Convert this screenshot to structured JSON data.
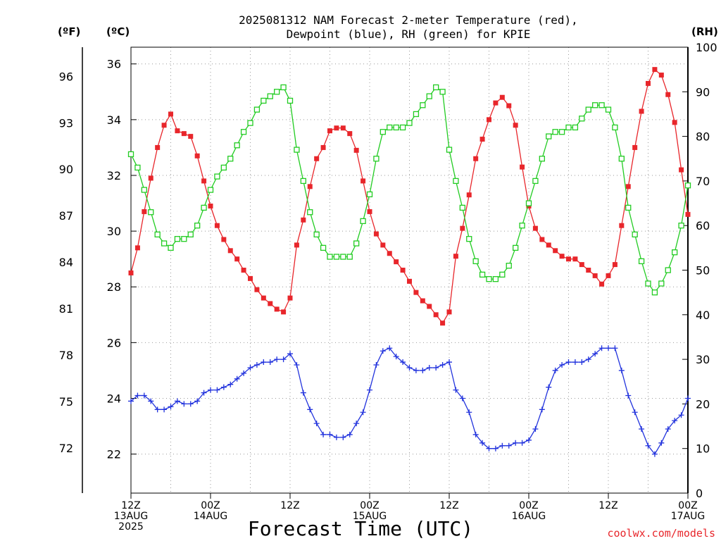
{
  "chart_data": {
    "type": "line",
    "title_line1": "2025081312 NAM Forecast 2-meter Temperature (red),",
    "title_line2": "Dewpoint (blue), RH (green) for KPIE",
    "xlabel": "Forecast Time (UTC)",
    "watermark": "coolwx.com/models",
    "left_outer_label": "(ºF)",
    "left_inner_label": "(ºC)",
    "right_label": "(RH)",
    "ylim_c": [
      20.6,
      36.6
    ],
    "ylim_rh": [
      0,
      100
    ],
    "celsius_ticks": [
      22,
      24,
      26,
      28,
      30,
      32,
      34,
      36
    ],
    "fahrenheit_ticks": [
      72,
      75,
      78,
      81,
      84,
      87,
      90,
      93,
      96
    ],
    "rh_ticks": [
      0,
      10,
      20,
      30,
      40,
      50,
      60,
      70,
      80,
      90,
      100
    ],
    "x_hours_range": [
      0,
      84
    ],
    "x_ticks": [
      {
        "hour": 0,
        "lines": [
          "12Z",
          "13AUG",
          "2025"
        ]
      },
      {
        "hour": 12,
        "lines": [
          "00Z",
          "14AUG"
        ]
      },
      {
        "hour": 24,
        "lines": [
          "12Z"
        ]
      },
      {
        "hour": 36,
        "lines": [
          "00Z",
          "15AUG"
        ]
      },
      {
        "hour": 48,
        "lines": [
          "12Z"
        ]
      },
      {
        "hour": 60,
        "lines": [
          "00Z",
          "16AUG"
        ]
      },
      {
        "hour": 72,
        "lines": [
          "12Z"
        ]
      },
      {
        "hour": 84,
        "lines": [
          "00Z",
          "17AUG"
        ]
      }
    ],
    "grid": true,
    "colors": {
      "temperature": "#e8262b",
      "dewpoint": "#2233dd",
      "rh": "#22cc22"
    },
    "series": [
      {
        "name": "Temperature",
        "units": "°C",
        "hours": [
          0,
          1,
          2,
          3,
          4,
          5,
          6,
          7,
          8,
          9,
          10,
          11,
          12,
          13,
          14,
          15,
          16,
          17,
          18,
          19,
          20,
          21,
          22,
          23,
          24,
          25,
          26,
          27,
          28,
          29,
          30,
          31,
          32,
          33,
          34,
          35,
          36,
          37,
          38,
          39,
          40,
          41,
          42,
          43,
          44,
          45,
          46,
          47,
          48,
          49,
          50,
          51,
          52,
          53,
          54,
          55,
          56,
          57,
          58,
          59,
          60,
          61,
          62,
          63,
          64,
          65,
          66,
          67,
          68,
          69,
          70,
          71,
          72,
          73,
          74,
          75,
          76,
          77,
          78,
          79,
          80,
          81,
          82,
          83,
          84
        ],
        "values": [
          28.5,
          29.4,
          30.7,
          31.9,
          33.0,
          33.8,
          34.2,
          33.6,
          33.5,
          33.4,
          32.7,
          31.8,
          30.9,
          30.2,
          29.7,
          29.3,
          29.0,
          28.6,
          28.3,
          27.9,
          27.6,
          27.4,
          27.2,
          27.1,
          27.6,
          29.5,
          30.4,
          31.6,
          32.6,
          33.0,
          33.6,
          33.7,
          33.7,
          33.5,
          32.9,
          31.8,
          30.7,
          29.9,
          29.5,
          29.2,
          28.9,
          28.6,
          28.2,
          27.8,
          27.5,
          27.3,
          27.0,
          26.7,
          27.1,
          29.1,
          30.1,
          31.3,
          32.6,
          33.3,
          34.0,
          34.6,
          34.8,
          34.5,
          33.8,
          32.3,
          30.9,
          30.1,
          29.7,
          29.5,
          29.3,
          29.1,
          29.0,
          29.0,
          28.8,
          28.6,
          28.4,
          28.1,
          28.4,
          28.8,
          30.2,
          31.6,
          33.0,
          34.3,
          35.3,
          35.8,
          35.6,
          34.9,
          33.9,
          32.2,
          30.6
        ]
      },
      {
        "name": "Dewpoint",
        "units": "°C",
        "hours": [
          0,
          1,
          2,
          3,
          4,
          5,
          6,
          7,
          8,
          9,
          10,
          11,
          12,
          13,
          14,
          15,
          16,
          17,
          18,
          19,
          20,
          21,
          22,
          23,
          24,
          25,
          26,
          27,
          28,
          29,
          30,
          31,
          32,
          33,
          34,
          35,
          36,
          37,
          38,
          39,
          40,
          41,
          42,
          43,
          44,
          45,
          46,
          47,
          48,
          49,
          50,
          51,
          52,
          53,
          54,
          55,
          56,
          57,
          58,
          59,
          60,
          61,
          62,
          63,
          64,
          65,
          66,
          67,
          68,
          69,
          70,
          71,
          72,
          73,
          74,
          75,
          76,
          77,
          78,
          79,
          80,
          81,
          82,
          83,
          84
        ],
        "values": [
          23.9,
          24.1,
          24.1,
          23.9,
          23.6,
          23.6,
          23.7,
          23.9,
          23.8,
          23.8,
          23.9,
          24.2,
          24.3,
          24.3,
          24.4,
          24.5,
          24.7,
          24.9,
          25.1,
          25.2,
          25.3,
          25.3,
          25.4,
          25.4,
          25.6,
          25.2,
          24.2,
          23.6,
          23.1,
          22.7,
          22.7,
          22.6,
          22.6,
          22.7,
          23.1,
          23.5,
          24.3,
          25.2,
          25.7,
          25.8,
          25.5,
          25.3,
          25.1,
          25.0,
          25.0,
          25.1,
          25.1,
          25.2,
          25.3,
          24.3,
          24.0,
          23.5,
          22.7,
          22.4,
          22.2,
          22.2,
          22.3,
          22.3,
          22.4,
          22.4,
          22.5,
          22.9,
          23.6,
          24.4,
          25.0,
          25.2,
          25.3,
          25.3,
          25.3,
          25.4,
          25.6,
          25.8,
          25.8,
          25.8,
          25.0,
          24.1,
          23.5,
          22.9,
          22.3,
          22.0,
          22.4,
          22.9,
          23.2,
          23.4,
          24.0
        ]
      },
      {
        "name": "RH",
        "units": "%",
        "hours": [
          0,
          1,
          2,
          3,
          4,
          5,
          6,
          7,
          8,
          9,
          10,
          11,
          12,
          13,
          14,
          15,
          16,
          17,
          18,
          19,
          20,
          21,
          22,
          23,
          24,
          25,
          26,
          27,
          28,
          29,
          30,
          31,
          32,
          33,
          34,
          35,
          36,
          37,
          38,
          39,
          40,
          41,
          42,
          43,
          44,
          45,
          46,
          47,
          48,
          49,
          50,
          51,
          52,
          53,
          54,
          55,
          56,
          57,
          58,
          59,
          60,
          61,
          62,
          63,
          64,
          65,
          66,
          67,
          68,
          69,
          70,
          71,
          72,
          73,
          74,
          75,
          76,
          77,
          78,
          79,
          80,
          81,
          82,
          83,
          84
        ],
        "values": [
          76,
          73,
          68,
          63,
          58,
          56,
          55,
          57,
          57,
          58,
          60,
          64,
          68,
          71,
          73,
          75,
          78,
          81,
          83,
          86,
          88,
          89,
          90,
          91,
          88,
          77,
          70,
          63,
          58,
          55,
          53,
          53,
          53,
          53,
          56,
          61,
          67,
          75,
          81,
          82,
          82,
          82,
          83,
          85,
          87,
          89,
          91,
          90,
          77,
          70,
          64,
          57,
          52,
          49,
          48,
          48,
          49,
          51,
          55,
          60,
          65,
          70,
          75,
          80,
          81,
          81,
          82,
          82,
          84,
          86,
          87,
          87,
          86,
          82,
          75,
          64,
          58,
          52,
          47,
          45,
          47,
          50,
          54,
          60,
          69
        ]
      }
    ]
  }
}
